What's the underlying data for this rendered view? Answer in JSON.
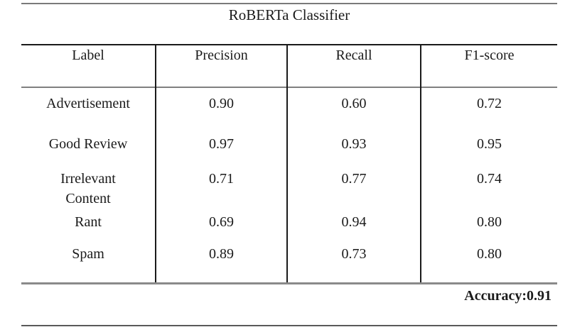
{
  "title": "RoBERTa Classifier",
  "table": {
    "columns": [
      "Label",
      "Precision",
      "Recall",
      "F1-score"
    ],
    "rows": [
      {
        "label": "Advertisement",
        "precision": "0.90",
        "recall": "0.60",
        "f1": "0.72"
      },
      {
        "label": "Good Review",
        "precision": "0.97",
        "recall": "0.93",
        "f1": "0.95"
      },
      {
        "label": "Irrelevant Content",
        "precision": "0.71",
        "recall": "0.77",
        "f1": "0.74"
      },
      {
        "label": "Rant",
        "precision": "0.69",
        "recall": "0.94",
        "f1": "0.80"
      },
      {
        "label": "Spam",
        "precision": "0.89",
        "recall": "0.73",
        "f1": "0.80"
      }
    ],
    "accuracy_label": "Accuracy:0.91"
  },
  "colors": {
    "text": "#1a1a1a",
    "black_rule": "#1a1a1a",
    "gray_rule": "#7a7a7a",
    "background": "#ffffff"
  },
  "chart_data": {
    "type": "table",
    "title": "RoBERTa Classifier",
    "columns": [
      "Label",
      "Precision",
      "Recall",
      "F1-score"
    ],
    "rows": [
      [
        "Advertisement",
        0.9,
        0.6,
        0.72
      ],
      [
        "Good Review",
        0.97,
        0.93,
        0.95
      ],
      [
        "Irrelevant Content",
        0.71,
        0.77,
        0.74
      ],
      [
        "Rant",
        0.69,
        0.94,
        0.8
      ],
      [
        "Spam",
        0.89,
        0.73,
        0.8
      ]
    ],
    "accuracy": 0.91
  }
}
